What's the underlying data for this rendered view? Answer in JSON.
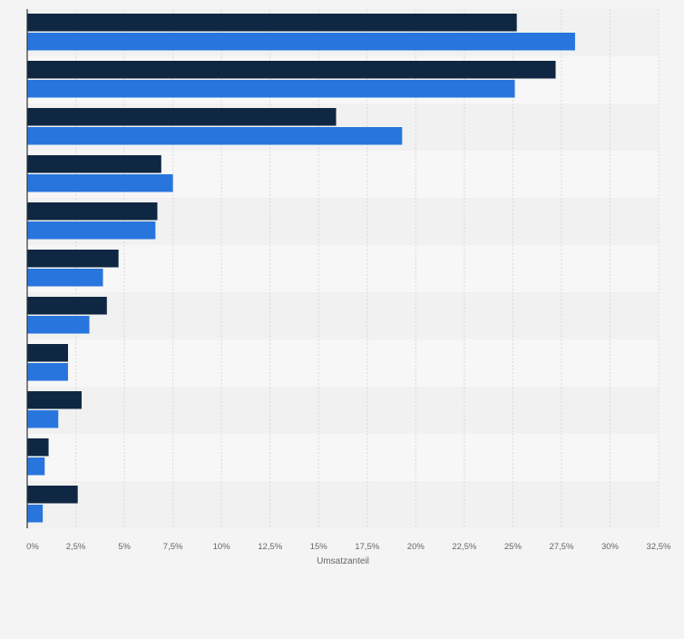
{
  "chart_data": {
    "type": "bar",
    "orientation": "horizontal",
    "xlabel": "Umsatzanteil",
    "x_ticks": [
      "0%",
      "2,5%",
      "5%",
      "7,5%",
      "10%",
      "12,5%",
      "15%",
      "17,5%",
      "20%",
      "22,5%",
      "25%",
      "27,5%",
      "30%",
      "32,5%"
    ],
    "xlim": [
      0,
      32.5
    ],
    "grid": true,
    "colors": {
      "series_1": "#0f2742",
      "series_2": "#2876dd",
      "band_light": "#f7f7f7",
      "band_dark": "#f1f1f1",
      "gridline": "#d9d9d9",
      "axis": "#333333",
      "tick_text": "#666666"
    },
    "series": [
      {
        "values": [
          25.2,
          27.2,
          15.9,
          6.9,
          6.7,
          4.7,
          4.1,
          2.1,
          2.8,
          1.1,
          2.6
        ]
      },
      {
        "values": [
          28.2,
          25.1,
          19.3,
          7.5,
          6.6,
          3.9,
          3.2,
          2.1,
          1.6,
          0.9,
          0.8
        ]
      }
    ]
  }
}
